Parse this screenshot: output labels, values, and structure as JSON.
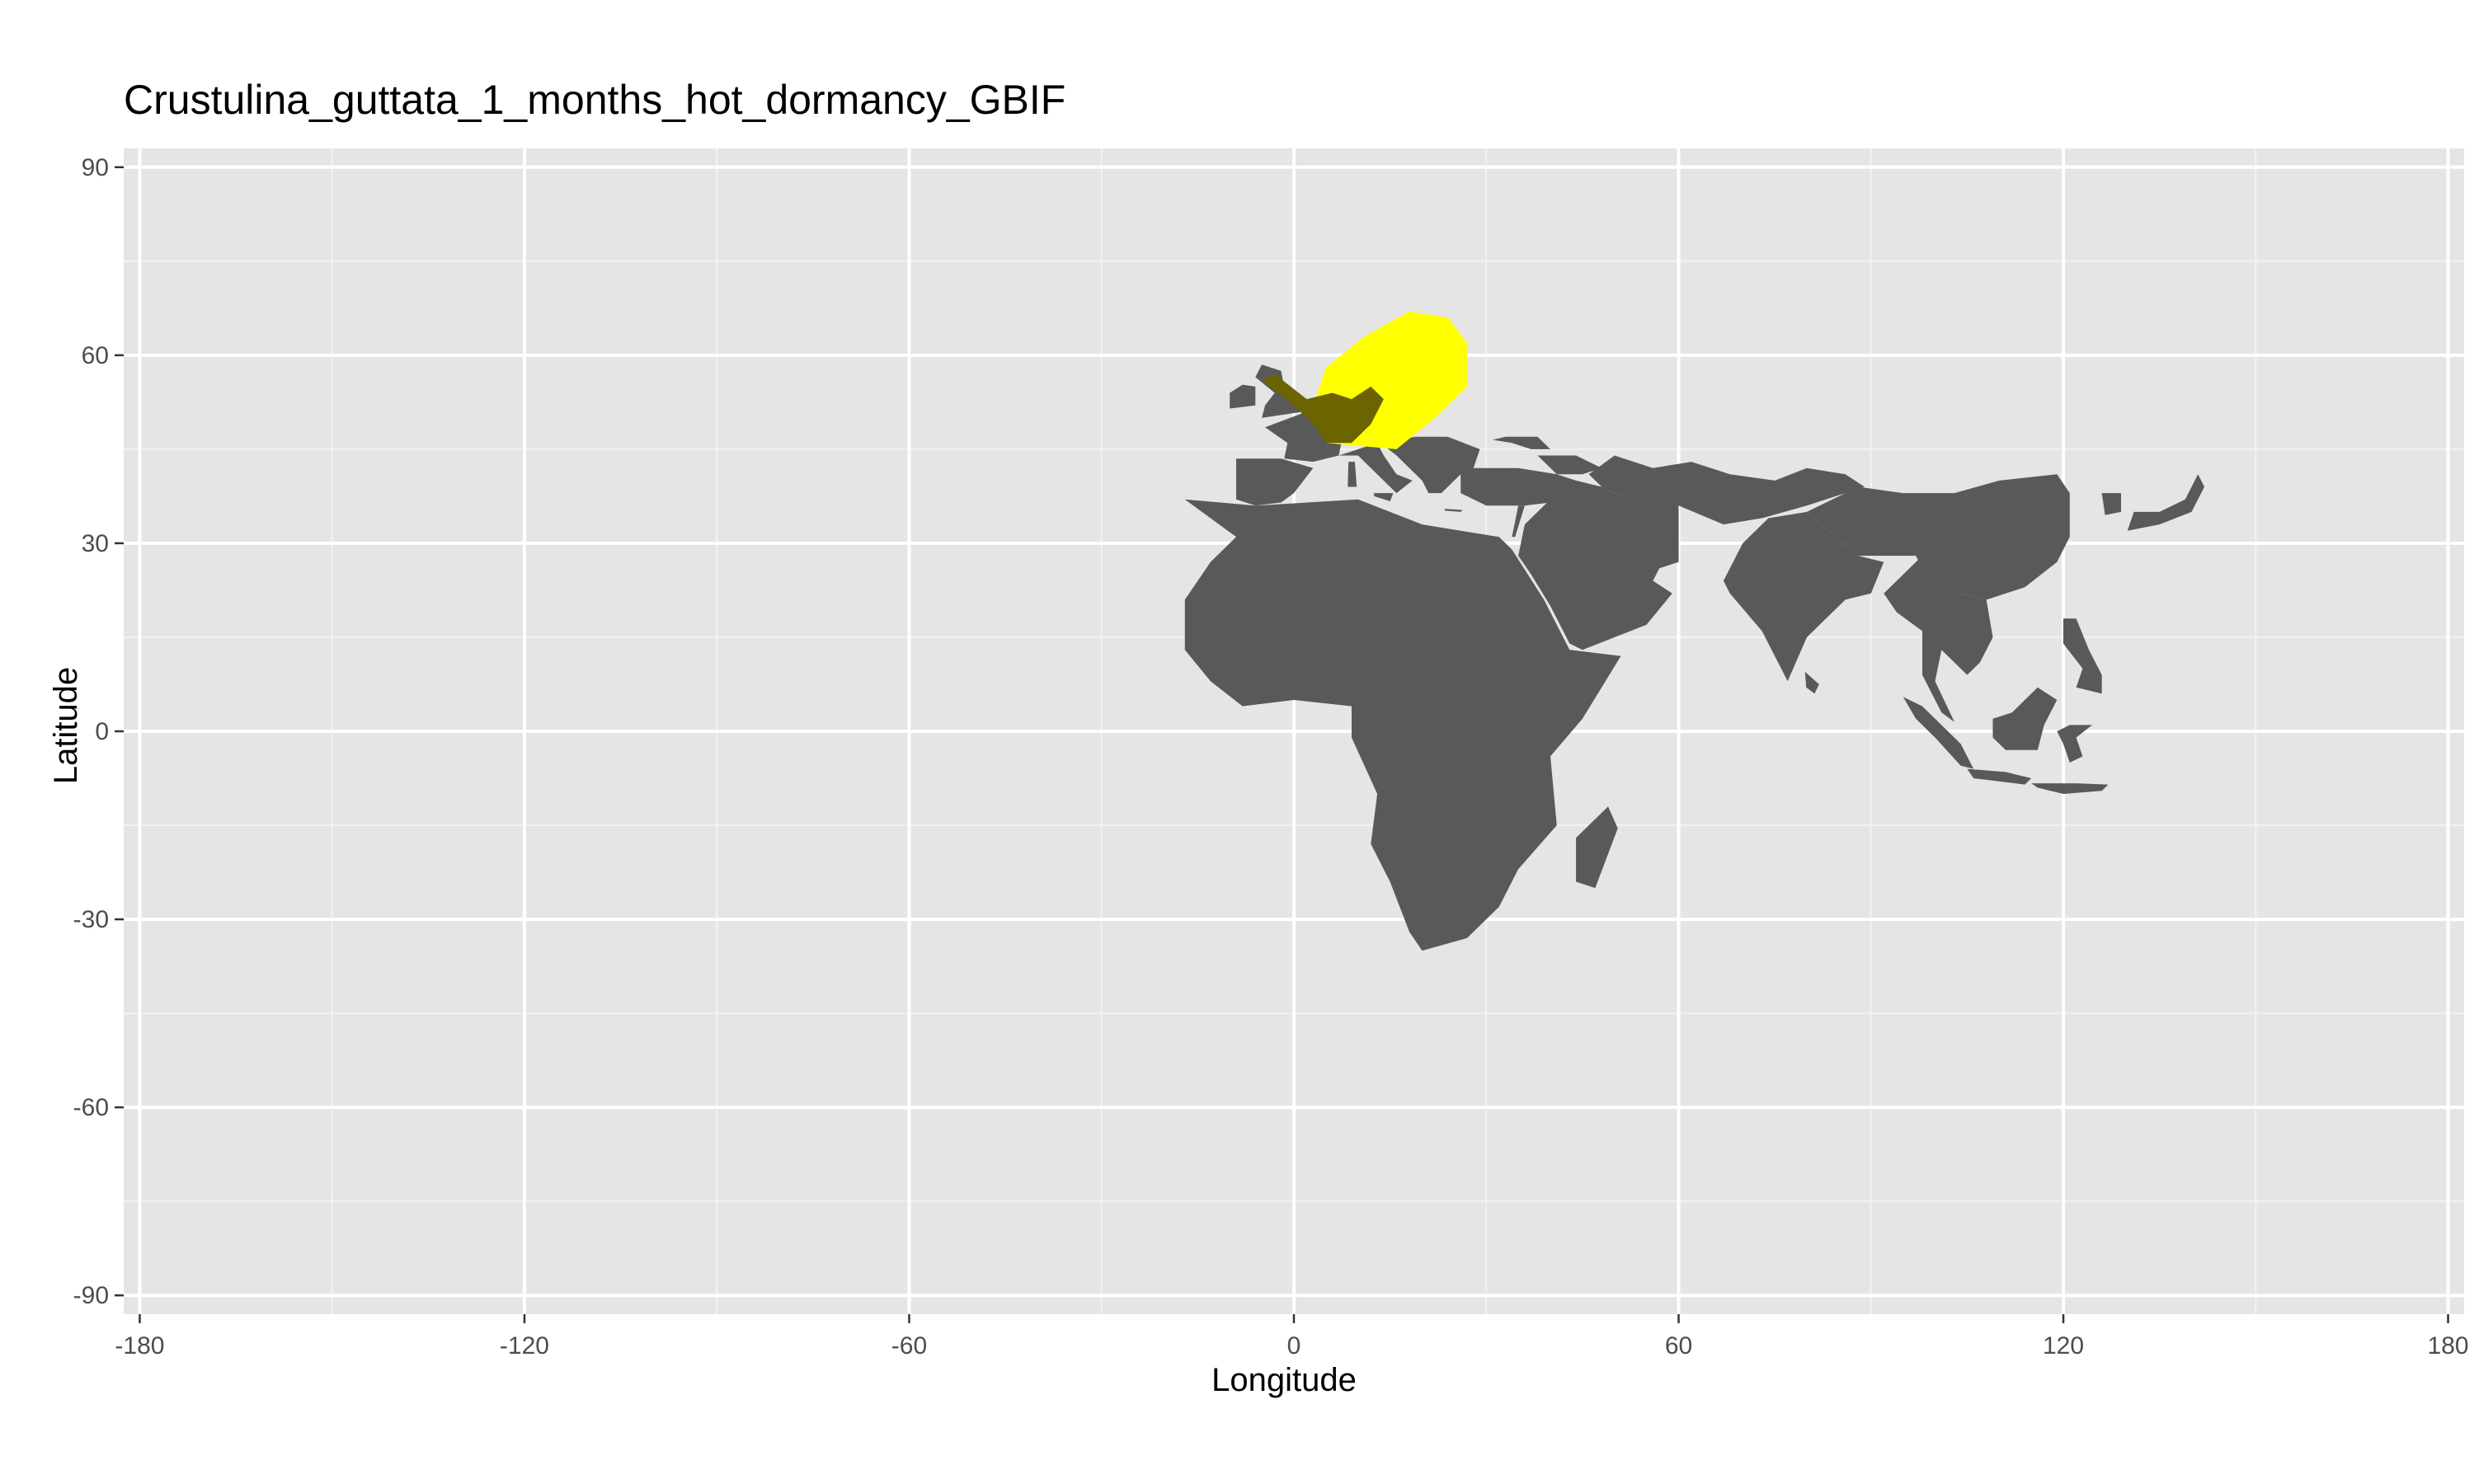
{
  "chart_data": {
    "type": "heatmap",
    "title": "Crustulina_guttata_1_months_hot_dormancy_GBIF",
    "xlabel": "Longitude",
    "ylabel": "Latitude",
    "xlim": [
      -180,
      180
    ],
    "ylim": [
      -90,
      90
    ],
    "x_ticks": [
      -180,
      -120,
      -60,
      0,
      60,
      120,
      180
    ],
    "y_ticks": [
      -90,
      -60,
      -30,
      0,
      30,
      60,
      90
    ],
    "x_tick_labels": [
      "-180",
      "-120",
      "-60",
      "0",
      "60",
      "120",
      "180"
    ],
    "y_tick_labels": [
      "-90",
      "-60",
      "-30",
      "0",
      "30",
      "60",
      "90"
    ],
    "grid": true,
    "colors": {
      "panel": "#e5e5e5",
      "land": "#595959",
      "suitable": "#ffff00",
      "overlap": "#6b6400"
    },
    "regions": [
      {
        "name": "Africa",
        "fill": "land",
        "polygon": [
          [
            -17,
            37
          ],
          [
            -6,
            36
          ],
          [
            10,
            37
          ],
          [
            20,
            33
          ],
          [
            32,
            31
          ],
          [
            34,
            29
          ],
          [
            39,
            21
          ],
          [
            43,
            13
          ],
          [
            51,
            12
          ],
          [
            45,
            2
          ],
          [
            40,
            -4
          ],
          [
            41,
            -15
          ],
          [
            35,
            -22
          ],
          [
            32,
            -28
          ],
          [
            27,
            -33
          ],
          [
            20,
            -35
          ],
          [
            18,
            -32
          ],
          [
            15,
            -24
          ],
          [
            12,
            -18
          ],
          [
            13,
            -10
          ],
          [
            9,
            -1
          ],
          [
            9,
            4
          ],
          [
            0,
            5
          ],
          [
            -8,
            4
          ],
          [
            -13,
            8
          ],
          [
            -17,
            13
          ],
          [
            -17,
            21
          ],
          [
            -13,
            27
          ],
          [
            -9,
            31
          ]
        ]
      },
      {
        "name": "Iberia",
        "fill": "land",
        "polygon": [
          [
            -9,
            43.5
          ],
          [
            -2,
            43.5
          ],
          [
            3,
            42
          ],
          [
            0,
            38
          ],
          [
            -2,
            36.5
          ],
          [
            -6,
            36
          ],
          [
            -9,
            37
          ],
          [
            -9,
            40
          ]
        ]
      },
      {
        "name": "France",
        "fill": "land",
        "polygon": [
          [
            -4.5,
            48.5
          ],
          [
            2,
            51
          ],
          [
            8,
            49
          ],
          [
            7,
            44
          ],
          [
            3,
            43
          ],
          [
            -1.5,
            43.5
          ],
          [
            -1,
            46
          ]
        ]
      },
      {
        "name": "Italy",
        "fill": "land",
        "polygon": [
          [
            7,
            44
          ],
          [
            13,
            46
          ],
          [
            14,
            44
          ],
          [
            16,
            41
          ],
          [
            18.5,
            40
          ],
          [
            16,
            38
          ],
          [
            12.5,
            41.5
          ],
          [
            10,
            44
          ]
        ]
      },
      {
        "name": "Balkans",
        "fill": "land",
        "polygon": [
          [
            13.5,
            46
          ],
          [
            19,
            47
          ],
          [
            24,
            47
          ],
          [
            29,
            45
          ],
          [
            28,
            42
          ],
          [
            26,
            41
          ],
          [
            23,
            38
          ],
          [
            21,
            38
          ],
          [
            20,
            40
          ],
          [
            16,
            44
          ]
        ]
      },
      {
        "name": "Black Sea North",
        "fill": "land",
        "polygon": [
          [
            29,
            46
          ],
          [
            33,
            47
          ],
          [
            38,
            47
          ],
          [
            40,
            45
          ],
          [
            37,
            45
          ],
          [
            34,
            46
          ],
          [
            31,
            46.5
          ]
        ]
      },
      {
        "name": "Caucasus",
        "fill": "land",
        "polygon": [
          [
            38,
            44
          ],
          [
            44,
            44
          ],
          [
            48,
            42
          ],
          [
            45,
            41
          ],
          [
            41,
            41
          ]
        ]
      },
      {
        "name": "Anatolia",
        "fill": "land",
        "polygon": [
          [
            26,
            42
          ],
          [
            35,
            42
          ],
          [
            41,
            41
          ],
          [
            44,
            40
          ],
          [
            44,
            37
          ],
          [
            36,
            36
          ],
          [
            30,
            36
          ],
          [
            26,
            38
          ]
        ]
      },
      {
        "name": "Levant",
        "fill": "land",
        "polygon": [
          [
            35,
            36
          ],
          [
            36,
            36
          ],
          [
            34.5,
            31
          ],
          [
            34,
            31
          ]
        ]
      },
      {
        "name": "Middle East",
        "fill": "land",
        "polygon": [
          [
            44,
            40
          ],
          [
            48,
            39
          ],
          [
            52,
            37
          ],
          [
            56,
            38
          ],
          [
            60,
            36
          ],
          [
            60,
            27
          ],
          [
            57,
            26
          ],
          [
            56,
            24
          ],
          [
            59,
            22
          ],
          [
            55,
            17
          ],
          [
            50,
            15
          ],
          [
            45,
            13
          ],
          [
            43,
            14
          ],
          [
            40,
            20
          ],
          [
            37,
            25
          ],
          [
            35,
            28
          ],
          [
            36,
            33
          ],
          [
            40,
            37
          ]
        ]
      },
      {
        "name": "Central Asia",
        "fill": "land",
        "polygon": [
          [
            46,
            41
          ],
          [
            50,
            44
          ],
          [
            56,
            42
          ],
          [
            62,
            43
          ],
          [
            68,
            41
          ],
          [
            75,
            40
          ],
          [
            80,
            42
          ],
          [
            86,
            41
          ],
          [
            89,
            39
          ],
          [
            80,
            36
          ],
          [
            73,
            34
          ],
          [
            67,
            33
          ],
          [
            60,
            36
          ],
          [
            52,
            37
          ],
          [
            48,
            39
          ]
        ]
      },
      {
        "name": "South Asia",
        "fill": "land",
        "polygon": [
          [
            67,
            24
          ],
          [
            70,
            30
          ],
          [
            74,
            34
          ],
          [
            80,
            35
          ],
          [
            88,
            28
          ],
          [
            92,
            27
          ],
          [
            90,
            22
          ],
          [
            86,
            21
          ],
          [
            80,
            15
          ],
          [
            77,
            8
          ],
          [
            73,
            16
          ],
          [
            68,
            22
          ]
        ]
      },
      {
        "name": "Sri Lanka",
        "fill": "land",
        "polygon": [
          [
            79.7,
            9.5
          ],
          [
            81.9,
            7.5
          ],
          [
            81.2,
            6
          ],
          [
            79.9,
            7
          ]
        ]
      },
      {
        "name": "Tibet and China",
        "fill": "land",
        "polygon": [
          [
            80,
            35
          ],
          [
            88,
            39
          ],
          [
            95,
            38
          ],
          [
            103,
            38
          ],
          [
            110,
            40
          ],
          [
            119,
            41
          ],
          [
            121,
            38
          ],
          [
            121,
            31
          ],
          [
            119,
            27
          ],
          [
            114,
            23
          ],
          [
            108,
            21
          ],
          [
            104,
            22
          ],
          [
            99,
            24
          ],
          [
            97,
            28
          ],
          [
            92,
            28
          ],
          [
            88,
            28
          ]
        ]
      },
      {
        "name": "Indochina",
        "fill": "land",
        "polygon": [
          [
            98,
            28
          ],
          [
            104,
            22
          ],
          [
            108,
            21
          ],
          [
            109,
            15
          ],
          [
            107,
            11
          ],
          [
            105,
            9
          ],
          [
            101,
            13
          ],
          [
            100,
            8
          ],
          [
            103,
            1.5
          ],
          [
            101,
            3
          ],
          [
            98,
            9
          ],
          [
            98,
            16
          ],
          [
            94,
            19
          ],
          [
            92,
            22
          ]
        ]
      },
      {
        "name": "Japan",
        "fill": "land",
        "polygon": [
          [
            130,
            32
          ],
          [
            131,
            35
          ],
          [
            135,
            35
          ],
          [
            139,
            37
          ],
          [
            141,
            41
          ],
          [
            142,
            39
          ],
          [
            140,
            35
          ],
          [
            135,
            33
          ]
        ]
      },
      {
        "name": "Korea",
        "fill": "land",
        "polygon": [
          [
            126,
            38
          ],
          [
            129,
            38
          ],
          [
            129,
            35
          ],
          [
            126.5,
            34.5
          ]
        ]
      },
      {
        "name": "Sumatra",
        "fill": "land",
        "polygon": [
          [
            95,
            5.5
          ],
          [
            98,
            4
          ],
          [
            104,
            -2
          ],
          [
            106,
            -6
          ],
          [
            104,
            -5.5
          ],
          [
            100,
            -1
          ],
          [
            97,
            2
          ]
        ]
      },
      {
        "name": "Java",
        "fill": "land",
        "polygon": [
          [
            105,
            -6
          ],
          [
            111,
            -6.5
          ],
          [
            115,
            -7.5
          ],
          [
            114,
            -8.5
          ],
          [
            106,
            -7.5
          ]
        ]
      },
      {
        "name": "Lesser Sunda",
        "fill": "land",
        "polygon": [
          [
            115,
            -8.3
          ],
          [
            122,
            -8.3
          ],
          [
            127,
            -8.5
          ],
          [
            126,
            -9.5
          ],
          [
            120,
            -10
          ],
          [
            116,
            -9
          ]
        ]
      },
      {
        "name": "Borneo",
        "fill": "land",
        "polygon": [
          [
            109,
            2
          ],
          [
            112,
            3
          ],
          [
            116,
            7
          ],
          [
            119,
            5
          ],
          [
            117,
            1
          ],
          [
            116,
            -3
          ],
          [
            111,
            -3
          ],
          [
            109,
            -1
          ]
        ]
      },
      {
        "name": "Sulawesi",
        "fill": "land",
        "polygon": [
          [
            119,
            0
          ],
          [
            121,
            1
          ],
          [
            124.5,
            1
          ],
          [
            122,
            -1
          ],
          [
            123,
            -4
          ],
          [
            121,
            -5
          ],
          [
            120,
            -2
          ]
        ]
      },
      {
        "name": "Philippines",
        "fill": "land",
        "polygon": [
          [
            120,
            18
          ],
          [
            122,
            18
          ],
          [
            124,
            13
          ],
          [
            126,
            9
          ],
          [
            126,
            6
          ],
          [
            122,
            7
          ],
          [
            123,
            10
          ],
          [
            120,
            14
          ]
        ]
      },
      {
        "name": "Sicily",
        "fill": "land",
        "polygon": [
          [
            12.5,
            38
          ],
          [
            15.5,
            38
          ],
          [
            15,
            36.7
          ],
          [
            12.5,
            37.5
          ]
        ]
      },
      {
        "name": "Sardinia and Corsica",
        "fill": "land",
        "polygon": [
          [
            8.5,
            43
          ],
          [
            9.5,
            43
          ],
          [
            9.8,
            39
          ],
          [
            8.4,
            39
          ]
        ]
      },
      {
        "name": "Crete",
        "fill": "land",
        "polygon": [
          [
            23.5,
            35.5
          ],
          [
            26.3,
            35.3
          ],
          [
            26,
            35
          ],
          [
            23.6,
            35.2
          ]
        ]
      },
      {
        "name": "Madagascar",
        "fill": "land",
        "polygon": [
          [
            49,
            -12
          ],
          [
            50.5,
            -15.5
          ],
          [
            47,
            -25
          ],
          [
            44,
            -24
          ],
          [
            44,
            -17
          ]
        ]
      },
      {
        "name": "Ireland",
        "fill": "land",
        "polygon": [
          [
            -10,
            51.5
          ],
          [
            -6,
            52
          ],
          [
            -6,
            55
          ],
          [
            -8,
            55.3
          ],
          [
            -10,
            54
          ]
        ]
      },
      {
        "name": "Great Britain",
        "fill": "land",
        "polygon": [
          [
            -5,
            50
          ],
          [
            1.5,
            51
          ],
          [
            1.5,
            53
          ],
          [
            -1.5,
            55
          ],
          [
            -2,
            57.5
          ],
          [
            -5,
            58.5
          ],
          [
            -6,
            56.5
          ],
          [
            -3,
            54
          ],
          [
            -4.5,
            52
          ]
        ]
      },
      {
        "name": "Suitable range",
        "fill": "suitable",
        "polygon": [
          [
            5,
            46
          ],
          [
            16,
            45
          ],
          [
            22,
            50
          ],
          [
            27,
            55
          ],
          [
            27,
            62
          ],
          [
            24,
            66
          ],
          [
            18,
            67
          ],
          [
            11,
            63
          ],
          [
            5,
            58
          ],
          [
            3,
            52
          ]
        ]
      },
      {
        "name": "Suitable over land",
        "fill": "overlap",
        "polygon": [
          [
            -5,
            56
          ],
          [
            -3,
            57
          ],
          [
            2,
            53
          ],
          [
            6,
            54
          ],
          [
            9,
            53
          ],
          [
            12,
            55
          ],
          [
            14,
            53
          ],
          [
            12,
            49
          ],
          [
            9,
            46
          ],
          [
            5,
            46
          ],
          [
            3,
            49
          ],
          [
            0,
            52
          ]
        ]
      }
    ]
  }
}
